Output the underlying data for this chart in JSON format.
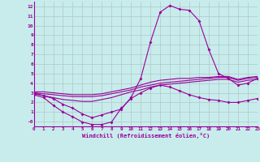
{
  "xlabel": "Windchill (Refroidissement éolien,°C)",
  "bg_color": "#c8ecec",
  "line_color": "#990099",
  "grid_color": "#b0c8c8",
  "x": [
    0,
    1,
    2,
    3,
    4,
    5,
    6,
    7,
    8,
    9,
    10,
    11,
    12,
    13,
    14,
    15,
    16,
    17,
    18,
    19,
    20,
    21,
    22,
    23
  ],
  "line1": [
    3.0,
    2.7,
    2.4,
    1.8,
    1.4,
    0.8,
    0.4,
    0.7,
    1.0,
    1.3,
    2.5,
    4.5,
    8.3,
    11.4,
    12.1,
    11.7,
    11.6,
    10.5,
    7.5,
    5.0,
    4.5,
    3.8,
    4.0,
    4.5
  ],
  "line2": [
    2.8,
    2.5,
    1.7,
    1.0,
    0.5,
    -0.05,
    -0.3,
    -0.3,
    -0.05,
    1.4,
    2.4,
    3.0,
    3.5,
    3.8,
    3.6,
    3.2,
    2.8,
    2.5,
    2.3,
    2.2,
    2.0,
    2.0,
    2.2,
    2.4
  ],
  "line3": [
    2.9,
    2.7,
    2.5,
    2.3,
    2.2,
    2.1,
    2.1,
    2.3,
    2.5,
    2.8,
    3.1,
    3.3,
    3.6,
    3.8,
    3.9,
    4.0,
    4.1,
    4.2,
    4.3,
    4.4,
    4.4,
    4.1,
    4.3,
    4.4
  ],
  "line4": [
    3.0,
    2.9,
    2.8,
    2.7,
    2.6,
    2.6,
    2.6,
    2.7,
    2.9,
    3.1,
    3.3,
    3.6,
    3.8,
    4.0,
    4.1,
    4.2,
    4.3,
    4.4,
    4.5,
    4.6,
    4.6,
    4.3,
    4.5,
    4.6
  ],
  "line5": [
    3.1,
    3.1,
    3.0,
    2.9,
    2.8,
    2.8,
    2.8,
    2.9,
    3.1,
    3.3,
    3.5,
    3.8,
    4.1,
    4.3,
    4.4,
    4.5,
    4.5,
    4.6,
    4.6,
    4.7,
    4.7,
    4.4,
    4.6,
    4.7
  ],
  "xlim": [
    0,
    23
  ],
  "ylim": [
    -0.5,
    12.5
  ],
  "ytick_vals": [
    0,
    1,
    2,
    3,
    4,
    5,
    6,
    7,
    8,
    9,
    10,
    11,
    12
  ],
  "ytick_labels": [
    "-0",
    "1",
    "2",
    "3",
    "4",
    "5",
    "6",
    "7",
    "8",
    "9",
    "10",
    "11",
    "12"
  ],
  "xtick_vals": [
    0,
    1,
    2,
    3,
    4,
    5,
    6,
    7,
    8,
    9,
    10,
    11,
    12,
    13,
    14,
    15,
    16,
    17,
    18,
    19,
    20,
    21,
    22,
    23
  ],
  "xtick_labels": [
    "0",
    "1",
    "2",
    "3",
    "4",
    "5",
    "6",
    "7",
    "8",
    "9",
    "10",
    "11",
    "12",
    "13",
    "14",
    "15",
    "16",
    "17",
    "18",
    "19",
    "20",
    "21",
    "22",
    "23"
  ]
}
